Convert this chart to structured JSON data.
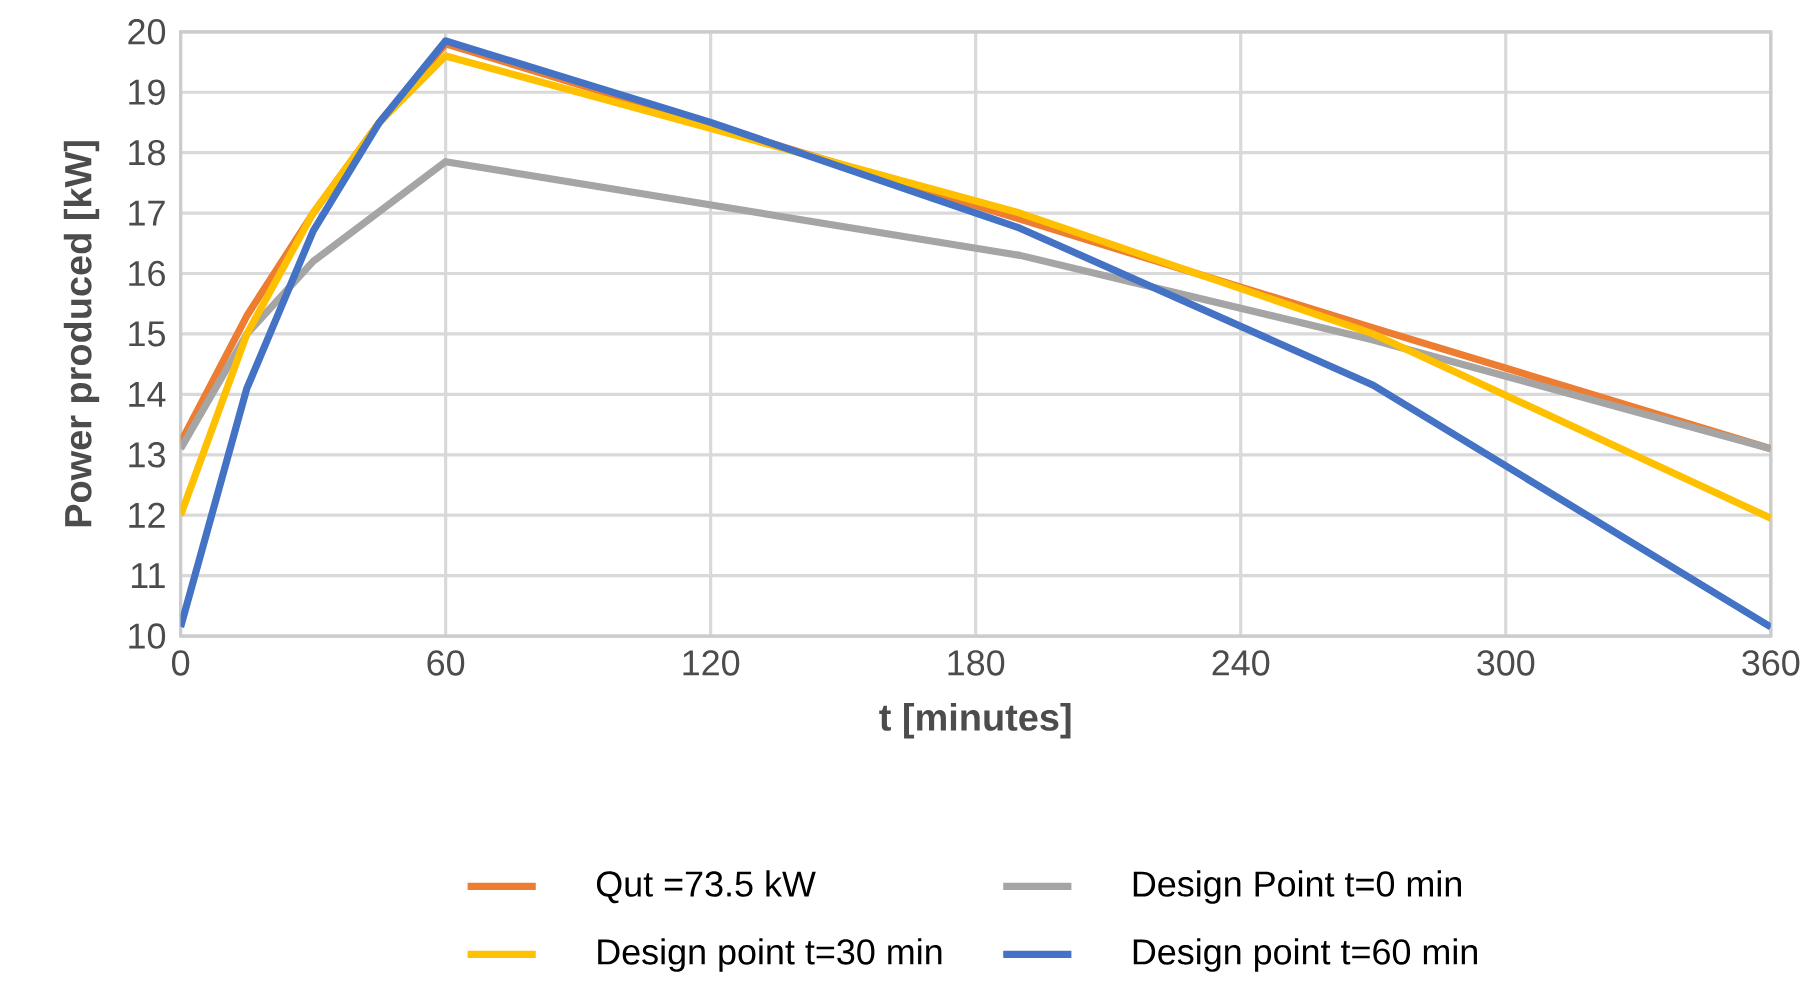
{
  "chart_data": {
    "type": "line",
    "xlabel": "t [minutes]",
    "ylabel": "Power produced [kW]",
    "xlim": [
      0,
      360
    ],
    "xticks": [
      0,
      60,
      120,
      180,
      240,
      300,
      360
    ],
    "ylim": [
      10,
      20
    ],
    "yticks": [
      10,
      11,
      12,
      13,
      14,
      15,
      16,
      17,
      18,
      19,
      20
    ],
    "grid": true,
    "legend": "bottom",
    "marker": "none",
    "line_style": "solid",
    "series": [
      {
        "name": "Qut =73.5 kW",
        "color": "#ed7d31",
        "x": [
          0,
          15,
          30,
          45,
          60,
          190,
          270,
          360
        ],
        "values": [
          13.2,
          15.3,
          17.0,
          18.5,
          19.8,
          16.9,
          15.1,
          13.1
        ]
      },
      {
        "name": "Design Point t=0 min",
        "color": "#a5a5a5",
        "x": [
          0,
          15,
          30,
          60,
          190,
          270,
          360
        ],
        "values": [
          13.1,
          15.0,
          16.2,
          17.85,
          16.3,
          14.9,
          13.1
        ]
      },
      {
        "name": "Design point t=30 min",
        "color": "#ffc000",
        "x": [
          0,
          15,
          30,
          45,
          60,
          190,
          270,
          360
        ],
        "values": [
          12.0,
          15.0,
          17.0,
          18.5,
          19.6,
          17.0,
          15.0,
          11.95
        ]
      },
      {
        "name": "Design point t=60 min",
        "color": "#4472c4",
        "x": [
          0,
          15,
          30,
          45,
          60,
          120,
          190,
          270,
          360
        ],
        "values": [
          10.15,
          14.1,
          16.7,
          18.5,
          19.85,
          18.5,
          16.75,
          14.15,
          10.15
        ]
      }
    ]
  }
}
